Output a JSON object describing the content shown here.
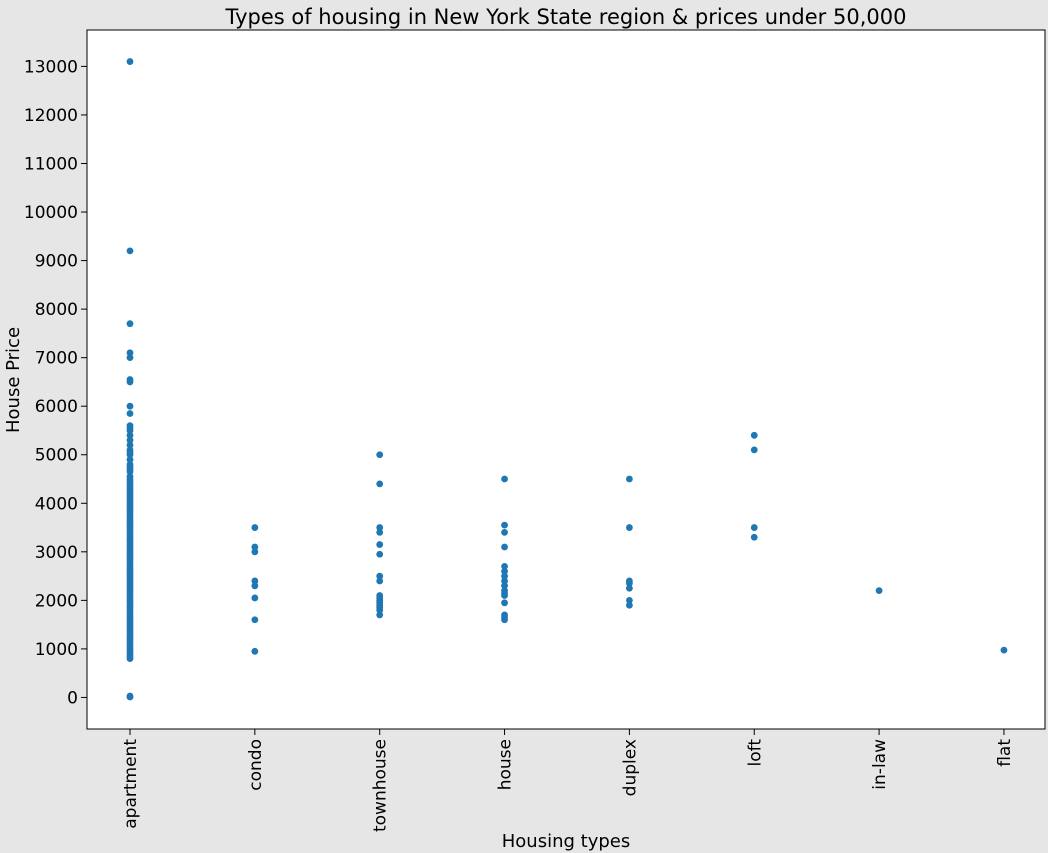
{
  "chart_data": {
    "type": "scatter",
    "title": "Types of housing in New York State region & prices under 50,000",
    "xlabel": "Housing types",
    "ylabel": "House Price",
    "categories": [
      "apartment",
      "condo",
      "townhouse",
      "house",
      "duplex",
      "loft",
      "in-law",
      "flat"
    ],
    "yticks": [
      "0",
      "1000",
      "2000",
      "3000",
      "4000",
      "5000",
      "6000",
      "7000",
      "8000",
      "9000",
      "10000",
      "11000",
      "12000",
      "13000"
    ],
    "ylim": [
      -650,
      13750
    ],
    "grid": false,
    "marker_color": "#1f77b4",
    "background": "#e6e6e6",
    "plot_background": "#ffffff",
    "series": [
      {
        "x": "apartment",
        "values": [
          13100,
          9200,
          7700,
          7100,
          7000,
          6550,
          6500,
          6000,
          5850,
          5600,
          5550,
          5500,
          5400,
          5300,
          5200,
          5100,
          5050,
          5000,
          4900,
          4800,
          4750,
          4700,
          4650,
          4550,
          4500,
          4450,
          4400,
          4350,
          4300,
          4250,
          4200,
          4150,
          4100,
          4050,
          4000,
          3950,
          3900,
          3850,
          3800,
          3750,
          3700,
          3650,
          3600,
          3550,
          3500,
          3450,
          3400,
          3350,
          3300,
          3250,
          3200,
          3150,
          3100,
          3050,
          3000,
          2950,
          2900,
          2850,
          2800,
          2750,
          2700,
          2650,
          2600,
          2550,
          2500,
          2450,
          2400,
          2350,
          2300,
          2250,
          2200,
          2150,
          2100,
          2050,
          2000,
          1950,
          1900,
          1850,
          1800,
          1750,
          1700,
          1650,
          1600,
          1550,
          1500,
          1450,
          1400,
          1350,
          1300,
          1250,
          1200,
          1150,
          1100,
          1050,
          1000,
          950,
          900,
          850,
          800,
          30,
          10
        ]
      },
      {
        "x": "condo",
        "values": [
          3500,
          3100,
          3000,
          2400,
          2300,
          2050,
          1600,
          950
        ]
      },
      {
        "x": "townhouse",
        "values": [
          5000,
          4400,
          3500,
          3400,
          3150,
          2950,
          2500,
          2400,
          2100,
          2050,
          2000,
          1950,
          1900,
          1850,
          1800,
          1700
        ]
      },
      {
        "x": "house",
        "values": [
          4500,
          3550,
          3400,
          3100,
          2700,
          2600,
          2500,
          2400,
          2300,
          2200,
          2150,
          2100,
          1950,
          1700,
          1650,
          1600
        ]
      },
      {
        "x": "duplex",
        "values": [
          4500,
          3500,
          2400,
          2350,
          2250,
          2000,
          1900
        ]
      },
      {
        "x": "loft",
        "values": [
          5400,
          5100,
          3500,
          3300
        ]
      },
      {
        "x": "in-law",
        "values": [
          2200
        ]
      },
      {
        "x": "flat",
        "values": [
          975
        ]
      }
    ]
  }
}
